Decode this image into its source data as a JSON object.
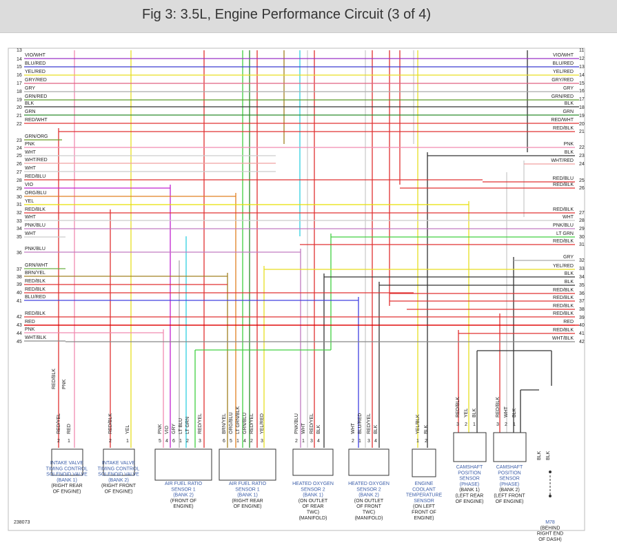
{
  "header": {
    "title": "Fig 3: 3.5L, Engine Performance Circuit (3 of 4)"
  },
  "left_numbers": [
    13,
    14,
    15,
    16,
    17,
    18,
    19,
    20,
    21,
    22,
    23,
    24,
    25,
    26,
    27,
    28,
    29,
    30,
    31,
    32,
    33,
    34,
    35,
    36,
    37,
    38,
    39,
    40,
    41,
    42,
    43,
    44,
    45
  ],
  "left_wires": [
    {
      "text": "VIO/WHT",
      "color": "#9b30c8"
    },
    {
      "text": "BLU/RED",
      "color": "#3a3ad0"
    },
    {
      "text": "YEL/RED",
      "color": "#e6de20"
    },
    {
      "text": "GRY/RED",
      "color": "#e06080"
    },
    {
      "text": "GRY",
      "color": "#aaaaaa"
    },
    {
      "text": "GRN/RED",
      "color": "#5a9a2a"
    },
    {
      "text": "BLK",
      "color": "#333333"
    },
    {
      "text": "GRN",
      "color": "#2a8a2a"
    },
    {
      "text": "RED/WHT",
      "color": "#e03030"
    },
    {
      "text": "GRN/ORG",
      "color": "#6a9a20"
    },
    {
      "text": "PNK",
      "color": "#f08ab0"
    },
    {
      "text": "WHT",
      "color": "#cccccc"
    },
    {
      "text": "WHT/RED",
      "color": "#f0a0a0"
    },
    {
      "text": "WHT",
      "color": "#cccccc"
    },
    {
      "text": "RED/BLU",
      "color": "#e03030"
    },
    {
      "text": "VIO",
      "color": "#c020d0"
    },
    {
      "text": "ORG/BLU",
      "color": "#e08020"
    },
    {
      "text": "YEL",
      "color": "#e6e000"
    },
    {
      "text": "RED/BLK",
      "color": "#e03030"
    },
    {
      "text": "WHT",
      "color": "#cccccc"
    },
    {
      "text": "PNK/BLU",
      "color": "#c07ac0"
    },
    {
      "text": "WHT",
      "color": "#cccccc"
    },
    {
      "text": "PNK/BLU",
      "color": "#c07ac0"
    },
    {
      "text": "GRN/WHT",
      "color": "#6ab040"
    },
    {
      "text": "BRN/YEL",
      "color": "#a08020"
    },
    {
      "text": "RED/BLK",
      "color": "#e03030"
    },
    {
      "text": "RED/BLK",
      "color": "#e03030"
    },
    {
      "text": "BLU/RED",
      "color": "#4040e0"
    },
    {
      "text": "RED/BLK",
      "color": "#e03030"
    },
    {
      "text": "RED",
      "color": "#e00000"
    },
    {
      "text": "PNK",
      "color": "#f08ab0"
    },
    {
      "text": "WHT/BLK",
      "color": "#888888"
    }
  ],
  "right_numbers": [
    11,
    12,
    13,
    14,
    15,
    16,
    17,
    18,
    19,
    20,
    21,
    22,
    23,
    24,
    25,
    26,
    27,
    28,
    29,
    30,
    31,
    32,
    33,
    34,
    35,
    36,
    37,
    38,
    39,
    40,
    41,
    42
  ],
  "right_wires": [
    {
      "text": "VIO/WHT",
      "color": "#9b30c8"
    },
    {
      "text": "BLU/RED",
      "color": "#3a3ad0"
    },
    {
      "text": "YEL/RED",
      "color": "#e6de20"
    },
    {
      "text": "GRY/RED",
      "color": "#e06080"
    },
    {
      "text": "GRY",
      "color": "#aaaaaa"
    },
    {
      "text": "GRN/RED",
      "color": "#5a9a2a"
    },
    {
      "text": "BLK",
      "color": "#333333"
    },
    {
      "text": "GRN",
      "color": "#2a8a2a"
    },
    {
      "text": "RED/WHT",
      "color": "#e03030"
    },
    {
      "text": "RED/BLK",
      "color": "#e03030"
    },
    {
      "text": "PNK",
      "color": "#f08ab0"
    },
    {
      "text": "BLK",
      "color": "#333333"
    },
    {
      "text": "WHT/RED",
      "color": "#f0a0a0"
    },
    {
      "text": "RED/BLU",
      "color": "#e03030"
    },
    {
      "text": "RED/BLK",
      "color": "#e03030"
    },
    {
      "text": "RED/BLK",
      "color": "#e03030"
    },
    {
      "text": "WHT",
      "color": "#cccccc"
    },
    {
      "text": "PNK/BLU",
      "color": "#c07ac0"
    },
    {
      "text": "LT GRN",
      "color": "#40d040"
    },
    {
      "text": "RED/BLK",
      "color": "#e03030"
    },
    {
      "text": "GRY",
      "color": "#aaaaaa"
    },
    {
      "text": "YEL/RED",
      "color": "#e6de20"
    },
    {
      "text": "BLK",
      "color": "#333333"
    },
    {
      "text": "BLK",
      "color": "#333333"
    },
    {
      "text": "RED/BLK",
      "color": "#e03030"
    },
    {
      "text": "RED/BLK",
      "color": "#e03030"
    },
    {
      "text": "RED/BLK",
      "color": "#e03030"
    },
    {
      "text": "RED/BLK",
      "color": "#e03030"
    },
    {
      "text": "RED",
      "color": "#e00000"
    },
    {
      "text": "RED/BLK",
      "color": "#e03030"
    },
    {
      "text": "WHT/BLK",
      "color": "#888888"
    }
  ],
  "components": [
    {
      "name": [
        "INTAKE VALVE",
        "TIMING CONTROL",
        "SOLENOID VALVE",
        "(BANK 1)"
      ],
      "location": [
        "(RIGHT REAR",
        "OF ENGINE)"
      ],
      "upper_wires": [
        "RED/BLK",
        "PNK"
      ],
      "pins": [
        {
          "num": 2,
          "wire": "RED/YEL"
        },
        {
          "num": 1,
          "wire": "RED"
        }
      ]
    },
    {
      "name": [
        "INTAKE VALVE",
        "TIMING CONTROL",
        "SOLENOID VALVE",
        "(BANK 2)"
      ],
      "location": [
        "(RIGHT FRONT",
        "OF ENGINE)"
      ],
      "pins": [
        {
          "num": 2,
          "wire": "RED/BLK"
        },
        {
          "num": 1,
          "wire": "YEL"
        }
      ]
    },
    {
      "name": [
        "AIR FUEL RATIO",
        "SENSOR 1",
        "(BANK 2)"
      ],
      "location": [
        "(FRONT OF",
        "ENGINE)"
      ],
      "pins": [
        {
          "num": 5,
          "wire": "PNK"
        },
        {
          "num": 4,
          "wire": "VIO"
        },
        {
          "num": 6,
          "wire": "GRY"
        },
        {
          "num": 1,
          "wire": "LT BLU"
        },
        {
          "num": 2,
          "wire": "LT GRN"
        },
        {
          "num": 3,
          "wire": "RED/YEL"
        }
      ]
    },
    {
      "name": [
        "AIR FUEL RATIO",
        "SENSOR 1",
        "(BANK 1)"
      ],
      "location": [
        "(RIGHT REAR",
        "OF ENGINE)"
      ],
      "pins": [
        {
          "num": 6,
          "wire": "BRN/YEL"
        },
        {
          "num": 5,
          "wire": "ORG/BLU"
        },
        {
          "num": 1,
          "wire": "LT GRN/BLK"
        },
        {
          "num": 4,
          "wire": "GRN/BLU"
        },
        {
          "num": 2,
          "wire": "RED/YEL"
        },
        {
          "num": 3,
          "wire": "YEL/RED"
        }
      ]
    },
    {
      "name": [
        "HEATED OXYGEN",
        "SENSOR 2",
        "(BANK 1)"
      ],
      "location": [
        "(ON OUTLET",
        "OF REAR",
        "TWC)",
        "(MANIFOLD)"
      ],
      "pins": [
        {
          "num": 2,
          "wire": "PNK/BLU"
        },
        {
          "num": 1,
          "wire": "WHT"
        },
        {
          "num": 3,
          "wire": "RED/YEL"
        },
        {
          "num": 4,
          "wire": "BLK"
        }
      ]
    },
    {
      "name": [
        "HEATED OXYGEN",
        "SENSOR 2",
        "(BANK 2)"
      ],
      "location": [
        "(ON OUTLET",
        "OF FRONT",
        "TWC)",
        "(MANIFOLD)"
      ],
      "pins": [
        {
          "num": 2,
          "wire": "WHT"
        },
        {
          "num": 1,
          "wire": "BLU/RED"
        },
        {
          "num": 3,
          "wire": "RED/YEL"
        },
        {
          "num": 4,
          "wire": "BLK"
        }
      ]
    },
    {
      "name": [
        "ENGINE",
        "COOLANT",
        "TEMPERATURE",
        "SENSOR"
      ],
      "location": [
        "(ON LEFT",
        "FRONT OF",
        "ENGINE)"
      ],
      "pins": [
        {
          "num": 1,
          "wire": "YEL/BLK"
        },
        {
          "num": 2,
          "wire": "BLK"
        }
      ]
    },
    {
      "name": [
        "CAMSHAFT",
        "POSITION",
        "SENSOR",
        "(PHASE)"
      ],
      "location": [
        "(BANK 1)",
        "(LEFT REAR",
        "OF ENGINE)"
      ],
      "pins": [
        {
          "num": 3,
          "wire": "RED/BLK"
        },
        {
          "num": 2,
          "wire": "YEL"
        },
        {
          "num": 1,
          "wire": "BLK"
        }
      ]
    },
    {
      "name": [
        "CAMSHAFT",
        "POSITION",
        "SENSOR",
        "(PHASE)"
      ],
      "location": [
        "(BANK 2)",
        "(LEFT FRONT",
        "OF ENGINE)"
      ],
      "pins": [
        {
          "num": 3,
          "wire": "RED/BLK"
        },
        {
          "num": 2,
          "wire": "WHT"
        },
        {
          "num": 1,
          "wire": "BLK"
        }
      ]
    },
    {
      "name": [
        "M78"
      ],
      "location": [
        "(BEHIND",
        "RIGHT END",
        "OF DASH)"
      ],
      "pins": [
        {
          "wire": "BLK"
        },
        {
          "wire": "BLK"
        }
      ]
    }
  ],
  "footer": {
    "code": "238073"
  }
}
